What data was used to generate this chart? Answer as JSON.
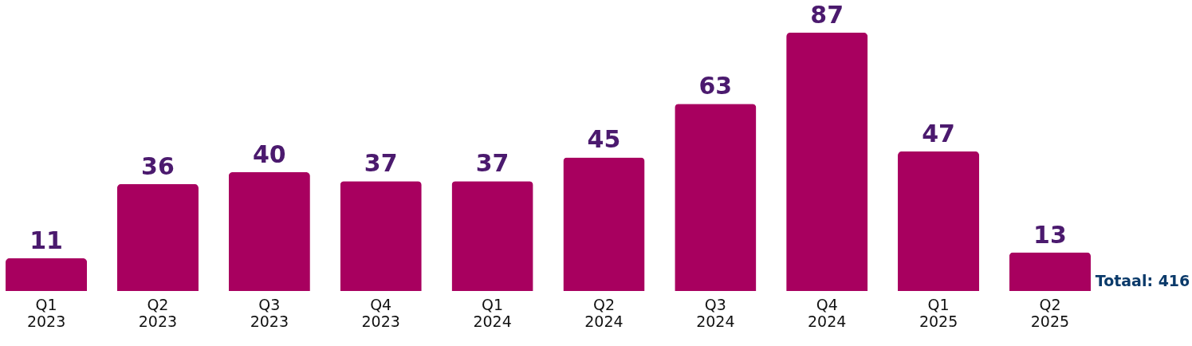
{
  "chart_data": {
    "type": "bar",
    "categories": [
      "Q1 2023",
      "Q2 2023",
      "Q3 2023",
      "Q4 2023",
      "Q1 2024",
      "Q2 2024",
      "Q3 2024",
      "Q4 2024",
      "Q1 2025",
      "Q2 2025"
    ],
    "values": [
      11,
      36,
      40,
      37,
      37,
      45,
      63,
      87,
      47,
      13
    ],
    "color": "#a8005f",
    "data_labels": true,
    "grid": false,
    "tick_labels": "x",
    "annotations": [
      "Totaal: 416"
    ]
  }
}
